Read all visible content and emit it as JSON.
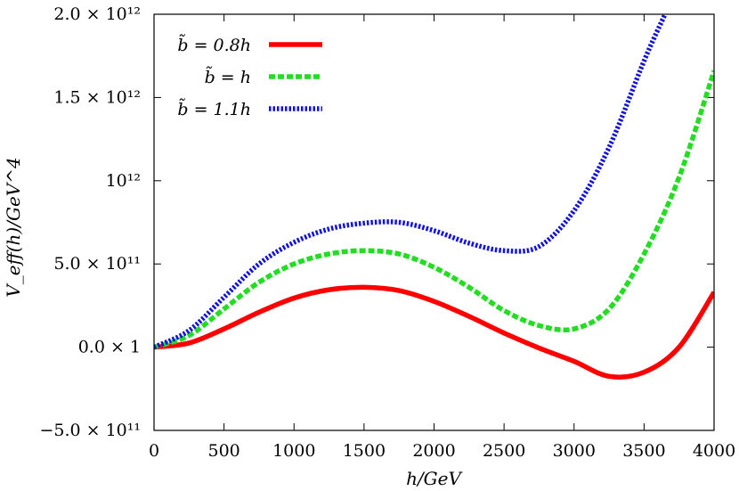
{
  "chart_data": {
    "type": "line",
    "xlabel": "h/GeV",
    "ylabel": "V_eff(h)/GeV^4",
    "xlim": [
      0,
      4000
    ],
    "ylim": [
      -500000000000,
      2000000000000
    ],
    "x_ticks": [
      0,
      500,
      1000,
      1500,
      2000,
      2500,
      3000,
      3500,
      4000
    ],
    "y_ticks": [
      {
        "value": -500000000000,
        "label": "−5.0 × 10¹¹"
      },
      {
        "value": 0,
        "label": "0.0 × 1"
      },
      {
        "value": 500000000000,
        "label": "5.0 × 10¹¹"
      },
      {
        "value": 1000000000000,
        "label": "10¹²"
      },
      {
        "value": 1500000000000,
        "label": "1.5 × 10¹²"
      },
      {
        "value": 2000000000000,
        "label": "2.0 × 10¹²"
      }
    ],
    "grid": false,
    "legend_position": "top-left",
    "series": [
      {
        "name": "b̃ = 0.8h",
        "color": "#ff0000",
        "style": "solid",
        "x": [
          0,
          250,
          500,
          750,
          1000,
          1250,
          1500,
          1750,
          2000,
          2250,
          2500,
          2750,
          3000,
          3250,
          3500,
          3750,
          4000
        ],
        "y": [
          0,
          25000000000,
          110000000000,
          210000000000,
          295000000000,
          345000000000,
          360000000000,
          340000000000,
          275000000000,
          185000000000,
          85000000000,
          -5000000000,
          -85000000000,
          -175000000000,
          -150000000000,
          0,
          330000000000
        ]
      },
      {
        "name": "b̃ = h",
        "color": "#22dd22",
        "style": "dashed",
        "x": [
          0,
          250,
          500,
          750,
          1000,
          1250,
          1500,
          1750,
          2000,
          2250,
          2500,
          2750,
          3000,
          3250,
          3500,
          3750,
          4000
        ],
        "y": [
          0,
          70000000000,
          230000000000,
          390000000000,
          500000000000,
          560000000000,
          580000000000,
          560000000000,
          480000000000,
          360000000000,
          220000000000,
          130000000000,
          110000000000,
          230000000000,
          560000000000,
          1020000000000,
          1660000000000
        ]
      },
      {
        "name": "b̃ = 1.1h",
        "color": "#1111dd",
        "style": "dotted",
        "x": [
          0,
          250,
          500,
          750,
          1000,
          1250,
          1500,
          1750,
          2000,
          2250,
          2500,
          2750,
          3000,
          3250,
          3500,
          3650
        ],
        "y": [
          0,
          100000000000,
          300000000000,
          500000000000,
          630000000000,
          710000000000,
          745000000000,
          750000000000,
          700000000000,
          625000000000,
          580000000000,
          605000000000,
          820000000000,
          1200000000000,
          1720000000000,
          2000000000000
        ]
      }
    ]
  }
}
